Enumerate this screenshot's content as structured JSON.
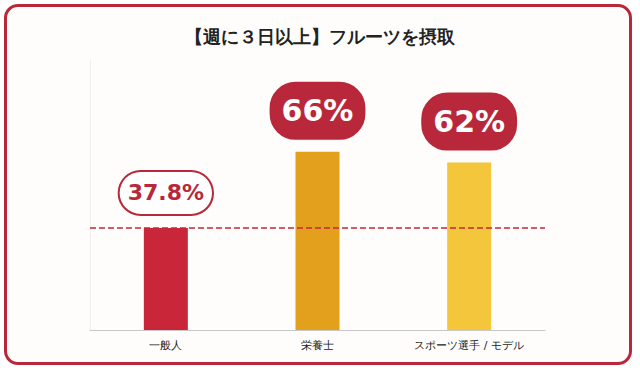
{
  "chart_data": {
    "type": "bar",
    "title": "【週に３日以上】フルーツを摂取",
    "categories": [
      "一般人",
      "栄養士",
      "スポーツ選手 / モデル"
    ],
    "values": [
      37.8,
      66,
      62
    ],
    "value_labels": [
      "37.8%",
      "66%",
      "62%"
    ],
    "colors": [
      "#c9263a",
      "#e3a01c",
      "#f3c63c"
    ],
    "ylim": [
      0,
      100
    ],
    "grid": false,
    "data_labels": true,
    "tick_labels": "x"
  }
}
